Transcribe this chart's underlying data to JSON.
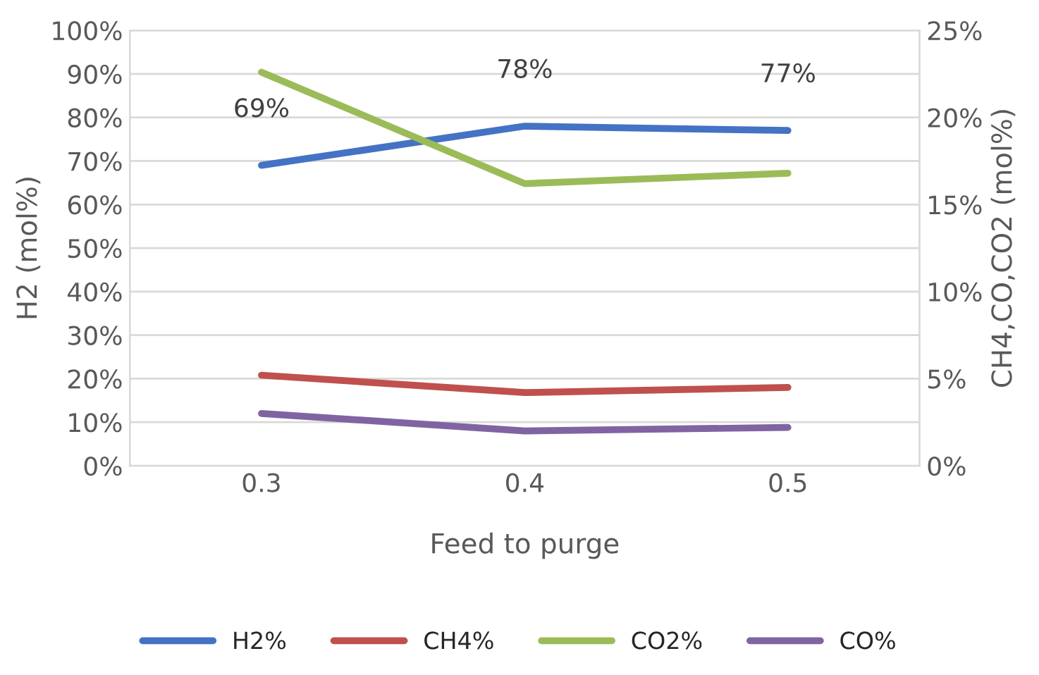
{
  "chart_data": {
    "type": "line",
    "xlabel": "Feed to purge",
    "ylabel": "H2 (mol%)",
    "y2label": "CH4,CO,CO2 (mol%)",
    "categories": [
      "0.3",
      "0.4",
      "0.5"
    ],
    "series": [
      {
        "name": "H2%",
        "color": "#4472c4",
        "values": [
          69,
          78,
          77
        ],
        "value_labels": [
          "69%",
          "78%",
          "77%"
        ]
      },
      {
        "name": "CH4%",
        "color": "#c0504d",
        "values": [
          5.2,
          4.2,
          4.5
        ],
        "axis": "y2"
      },
      {
        "name": "CO2%",
        "color": "#9bbb59",
        "values": [
          22.6,
          16.2,
          16.8
        ],
        "axis": "y2"
      },
      {
        "name": "CO%",
        "color": "#8064a2",
        "values": [
          3.0,
          2.0,
          2.2
        ],
        "axis": "y2"
      }
    ],
    "ylim": [
      0,
      100
    ],
    "yticks": [
      {
        "value": 0,
        "label": "0%"
      },
      {
        "value": 10,
        "label": "10%"
      },
      {
        "value": 20,
        "label": "20%"
      },
      {
        "value": 30,
        "label": "30%"
      },
      {
        "value": 40,
        "label": "40%"
      },
      {
        "value": 50,
        "label": "50%"
      },
      {
        "value": 60,
        "label": "60%"
      },
      {
        "value": 70,
        "label": "70%"
      },
      {
        "value": 80,
        "label": "80%"
      },
      {
        "value": 90,
        "label": "90%"
      },
      {
        "value": 100,
        "label": "100%"
      }
    ],
    "y2lim": [
      0,
      25
    ],
    "y2ticks": [
      {
        "value": 0,
        "label": "0%"
      },
      {
        "value": 5,
        "label": "5%"
      },
      {
        "value": 10,
        "label": "10%"
      },
      {
        "value": 15,
        "label": "15%"
      },
      {
        "value": 20,
        "label": "20%"
      },
      {
        "value": 25,
        "label": "25%"
      }
    ],
    "grid": "y",
    "legend": "bottom",
    "marker": "none",
    "line_style": "solid"
  }
}
